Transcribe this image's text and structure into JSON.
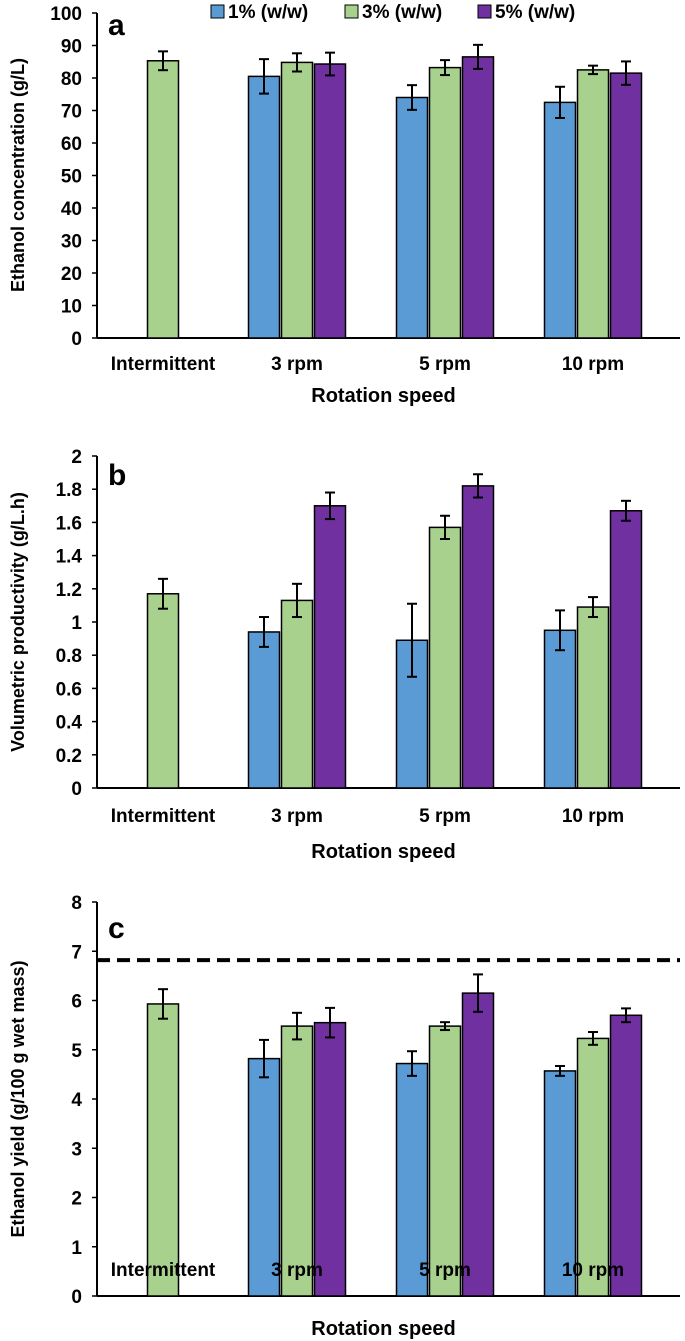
{
  "legend": [
    {
      "label": "1% (w/w)",
      "color": "#5b9bd5"
    },
    {
      "label": "3% (w/w)",
      "color": "#a9d18e"
    },
    {
      "label": "5% (w/w)",
      "color": "#7030a0"
    }
  ],
  "chart_data": [
    {
      "type": "bar",
      "panel_label": "a",
      "categories": [
        "Intermittent",
        "3 rpm",
        "5 rpm",
        "10 rpm"
      ],
      "series": [
        {
          "name": "1% (w/w)",
          "values": [
            null,
            80.5,
            74,
            72.5
          ],
          "errors": [
            null,
            5.3,
            3.8,
            4.8
          ]
        },
        {
          "name": "3% (w/w)",
          "values": [
            85.3,
            84.8,
            83.2,
            82.5
          ],
          "errors": [
            2.9,
            2.8,
            2.3,
            1.3
          ]
        },
        {
          "name": "5% (w/w)",
          "values": [
            null,
            84.3,
            86.5,
            81.5
          ],
          "errors": [
            null,
            3.5,
            3.7,
            3.6
          ]
        }
      ],
      "xlabel": "Rotation speed",
      "ylabel": "Ethanol concentration (g/L)",
      "ylim": [
        0,
        100
      ],
      "yticks": [
        "0",
        "10",
        "20",
        "30",
        "40",
        "50",
        "60",
        "70",
        "80",
        "90",
        "100"
      ],
      "grid": false
    },
    {
      "type": "bar",
      "panel_label": "b",
      "categories": [
        "Intermittent",
        "3 rpm",
        "5 rpm",
        "10 rpm"
      ],
      "series": [
        {
          "name": "1% (w/w)",
          "values": [
            null,
            0.94,
            0.89,
            0.95
          ],
          "errors": [
            null,
            0.09,
            0.22,
            0.12
          ]
        },
        {
          "name": "3% (w/w)",
          "values": [
            1.17,
            1.13,
            1.57,
            1.09
          ],
          "errors": [
            0.09,
            0.1,
            0.07,
            0.06
          ]
        },
        {
          "name": "5% (w/w)",
          "values": [
            null,
            1.7,
            1.82,
            1.67
          ],
          "errors": [
            null,
            0.08,
            0.07,
            0.06
          ]
        }
      ],
      "xlabel": "Rotation speed",
      "ylabel": "Volumetric productivity (g/L.h)",
      "ylim": [
        0,
        2
      ],
      "yticks": [
        "0",
        "0.2",
        "0.4",
        "0.6",
        "0.8",
        "1",
        "1.2",
        "1.4",
        "1.6",
        "1.8",
        "2"
      ],
      "grid": false
    },
    {
      "type": "bar",
      "panel_label": "c",
      "categories": [
        "Intermittent",
        "3 rpm",
        "5 rpm",
        "10 rpm"
      ],
      "series": [
        {
          "name": "1% (w/w)",
          "values": [
            null,
            4.82,
            4.72,
            4.57
          ],
          "errors": [
            null,
            0.38,
            0.25,
            0.1
          ]
        },
        {
          "name": "3% (w/w)",
          "values": [
            5.93,
            5.48,
            5.48,
            5.23
          ],
          "errors": [
            0.3,
            0.27,
            0.08,
            0.13
          ]
        },
        {
          "name": "5% (w/w)",
          "values": [
            null,
            5.55,
            6.15,
            5.7
          ],
          "errors": [
            null,
            0.3,
            0.38,
            0.14
          ]
        }
      ],
      "reference_line": {
        "y": 6.82,
        "style": "dashed"
      },
      "xlabel": "Rotation speed",
      "ylabel": "Ethanol yield (g/100 g wet mass)",
      "ylim": [
        0,
        8
      ],
      "yticks": [
        "0",
        "1",
        "2",
        "3",
        "4",
        "5",
        "6",
        "7",
        "8"
      ],
      "grid": false
    }
  ]
}
